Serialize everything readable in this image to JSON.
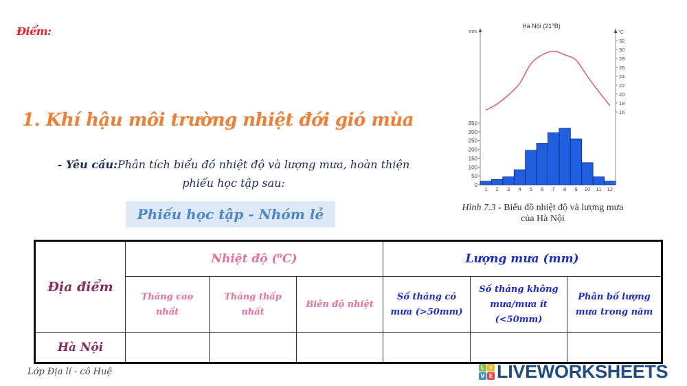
{
  "header": {
    "score_label": "Điểm:"
  },
  "section": {
    "title": "1. Khí hậu môi trường nhiệt đới gió mùa",
    "requirement_label": "- Yêu cầu:",
    "requirement_text": "Phân tích biểu đồ nhiệt độ và lượng mưa, hoàn thiện phiếu học tập sau:",
    "worksheet_badge": "Phiếu học tập - Nhóm lẻ"
  },
  "figure": {
    "caption_prefix": "Hình 7.3",
    "caption_text": " - Biểu đồ nhiệt độ và lượng mưa",
    "caption_line2": "của Hà Nội"
  },
  "chart_data": {
    "type": "bar+line",
    "title": "Hà Nội (21°B)",
    "categories": [
      "1",
      "2",
      "3",
      "4",
      "5",
      "6",
      "7",
      "8",
      "9",
      "10",
      "11",
      "12"
    ],
    "series": [
      {
        "name": "Lượng mưa",
        "type": "bar",
        "unit": "mm",
        "axis": "left",
        "color": "#1f5fe0",
        "values": [
          20,
          30,
          45,
          85,
          195,
          235,
          295,
          320,
          260,
          125,
          45,
          20
        ]
      },
      {
        "name": "Nhiệt độ",
        "type": "line",
        "unit": "°C",
        "axis": "right",
        "color": "#e0506e",
        "values": [
          16.4,
          17.8,
          19.8,
          22.4,
          26.8,
          28.8,
          29.6,
          28.8,
          27.6,
          24.0,
          20.6,
          17.4
        ]
      }
    ],
    "ylabel_left": "mm",
    "ylabel_right": "°C",
    "yticks_left": [
      0,
      50,
      100,
      150,
      200,
      250,
      300,
      350
    ],
    "yticks_right": [
      16,
      18,
      20,
      22,
      24,
      26,
      28,
      30,
      32
    ],
    "ylim_left": [
      0,
      350
    ],
    "ylim_right": [
      16,
      32
    ],
    "grid": false,
    "legend": "none"
  },
  "table": {
    "location_header": "Địa điểm",
    "temperature_header": "Nhiệt độ (⁰C)",
    "rainfall_header": "Lượng mưa (mm)",
    "temperature_columns": [
      "Tháng cao nhất",
      "Tháng thấp nhất",
      "Biên độ nhiệt"
    ],
    "rainfall_columns": [
      "Số tháng có mưa (>50mm)",
      "Số tháng không mưa/mưa ít (<50mm)",
      "Phân bố lượng mưa trong năm"
    ],
    "rows": [
      {
        "location": "Hà Nội",
        "values": [
          "",
          "",
          "",
          "",
          "",
          ""
        ]
      }
    ]
  },
  "footer": {
    "credit": "Lớp Địa lí - cô Huệ",
    "brand": "LIVEWORKSHEETS",
    "brand_blocks": [
      "L",
      "I",
      "V",
      "E"
    ],
    "brand_block_colors": [
      "#7cc242",
      "#f7b52c",
      "#3f8fd2",
      "#e8463c"
    ]
  }
}
